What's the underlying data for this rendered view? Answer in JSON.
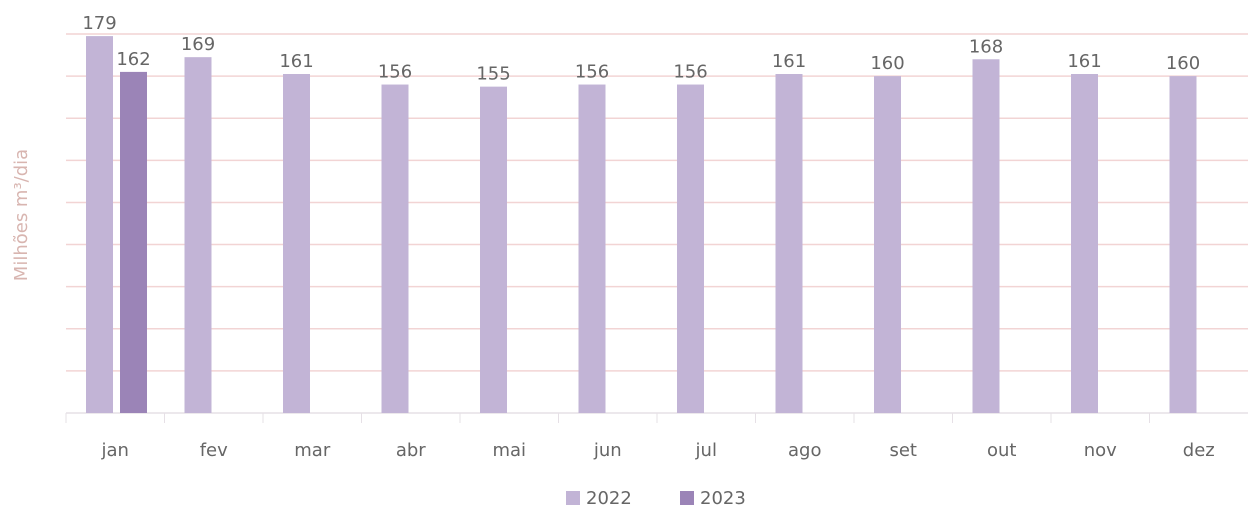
{
  "chart_data": {
    "type": "bar",
    "y_label": "Milhões m³/dia",
    "categories": [
      "jan",
      "fev",
      "mar",
      "abr",
      "mai",
      "jun",
      "jul",
      "ago",
      "set",
      "out",
      "nov",
      "dez"
    ],
    "series": [
      {
        "name": "2022",
        "color": "#c2b4d6",
        "values": [
          179,
          169,
          161,
          156,
          155,
          156,
          156,
          161,
          160,
          168,
          161,
          160
        ]
      },
      {
        "name": "2023",
        "color": "#9b84b7",
        "values": [
          162,
          null,
          null,
          null,
          null,
          null,
          null,
          null,
          null,
          null,
          null,
          null
        ]
      }
    ],
    "ylim": [
      0,
      180
    ],
    "yticks": [
      0,
      20,
      40,
      60,
      80,
      100,
      120,
      140,
      160,
      180
    ],
    "grid": true
  }
}
